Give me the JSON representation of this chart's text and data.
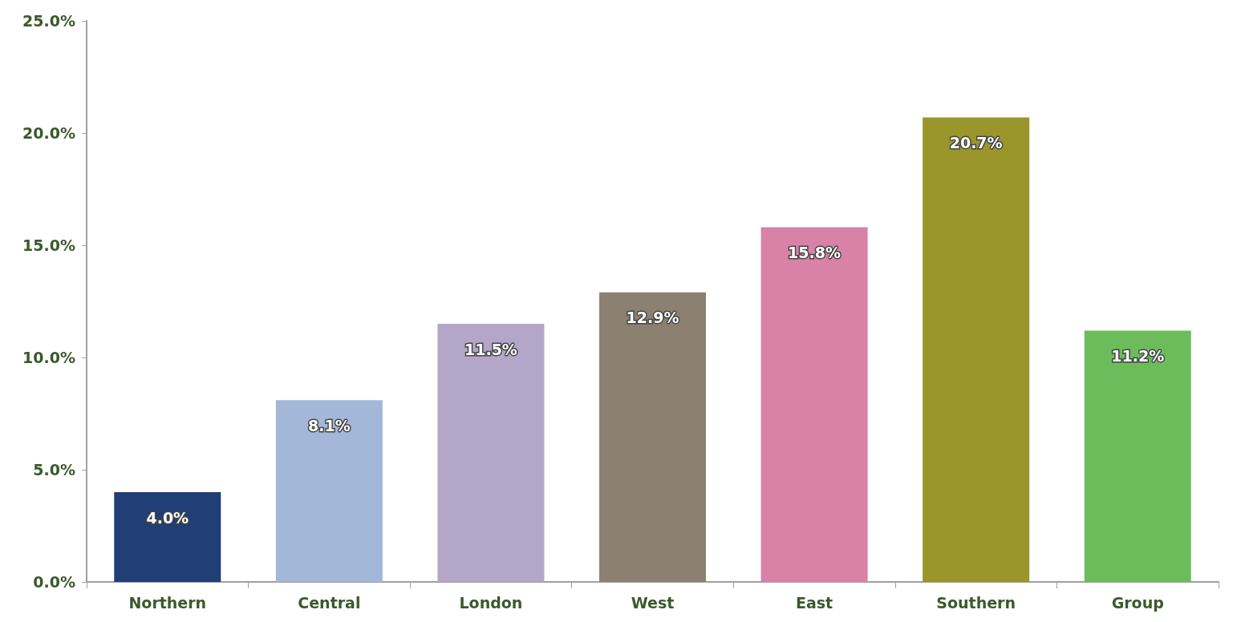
{
  "chart_data": {
    "type": "bar",
    "categories": [
      "Northern",
      "Central",
      "London",
      "West",
      "East",
      "Southern",
      "Group"
    ],
    "values": [
      4.0,
      8.1,
      11.5,
      12.9,
      15.8,
      20.7,
      11.2
    ],
    "colors": [
      "#1f3f75",
      "#a3b8d8",
      "#b4a6c8",
      "#8c8070",
      "#d882a8",
      "#9a962c",
      "#6cbc5c"
    ],
    "value_labels": [
      "4.0%",
      "8.1%",
      "11.5%",
      "12.9%",
      "15.8%",
      "20.7%",
      "11.2%"
    ],
    "ylim": [
      0,
      25
    ],
    "yticks": [
      {
        "value": 0,
        "label": "0.0%"
      },
      {
        "value": 5,
        "label": "5.0%"
      },
      {
        "value": 10,
        "label": "10.0%"
      },
      {
        "value": 15,
        "label": "15.0%"
      },
      {
        "value": 20,
        "label": "20.0%"
      },
      {
        "value": 25,
        "label": "25.0%"
      }
    ],
    "grid": false
  }
}
